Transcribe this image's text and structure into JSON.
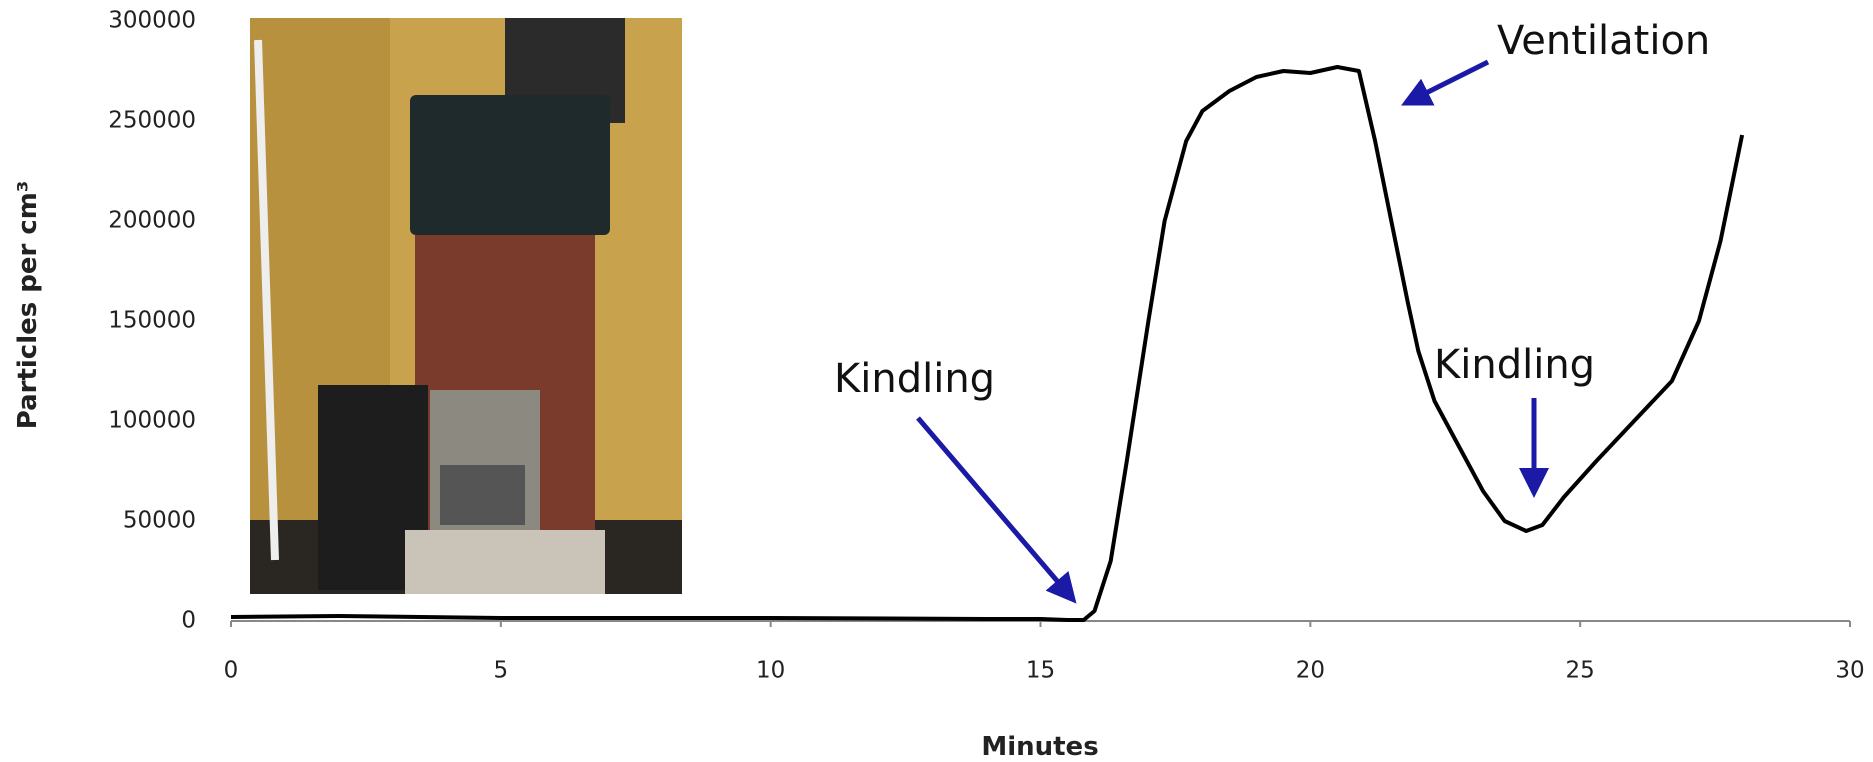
{
  "chart_data": {
    "type": "line",
    "y_label": "Particles per cm³",
    "x_label": "Minutes",
    "annotations": [
      "Kindling",
      "Ventilation",
      "Kindling"
    ],
    "x": [
      0,
      2,
      5,
      10,
      14,
      15,
      15.5,
      15.8,
      16,
      16.3,
      16.6,
      17,
      17.3,
      17.7,
      18,
      18.5,
      19,
      19.5,
      20,
      20.5,
      20.9,
      21.2,
      21.5,
      21.8,
      22,
      22.3,
      22.7,
      23.2,
      23.6,
      24,
      24.3,
      24.7,
      25.3,
      26,
      26.7,
      27.2,
      27.6,
      28
    ],
    "series": [
      {
        "color": "#000000",
        "values": [
          2000,
          2500,
          1500,
          1500,
          1000,
          1000,
          500,
          500,
          5000,
          30000,
          80000,
          150000,
          200000,
          240000,
          255000,
          265000,
          272000,
          275000,
          274000,
          277000,
          275000,
          240000,
          200000,
          160000,
          135000,
          110000,
          90000,
          65000,
          50000,
          45000,
          48000,
          62000,
          80000,
          100000,
          120000,
          150000,
          190000,
          243000
        ]
      }
    ],
    "xlim": [
      0,
      30
    ],
    "xticks": [
      0,
      5,
      10,
      15,
      20,
      25,
      30
    ],
    "ylim": [
      0,
      300000
    ],
    "yticks": [
      0,
      50000,
      100000,
      150000,
      200000,
      250000,
      300000
    ],
    "grid": false
  }
}
